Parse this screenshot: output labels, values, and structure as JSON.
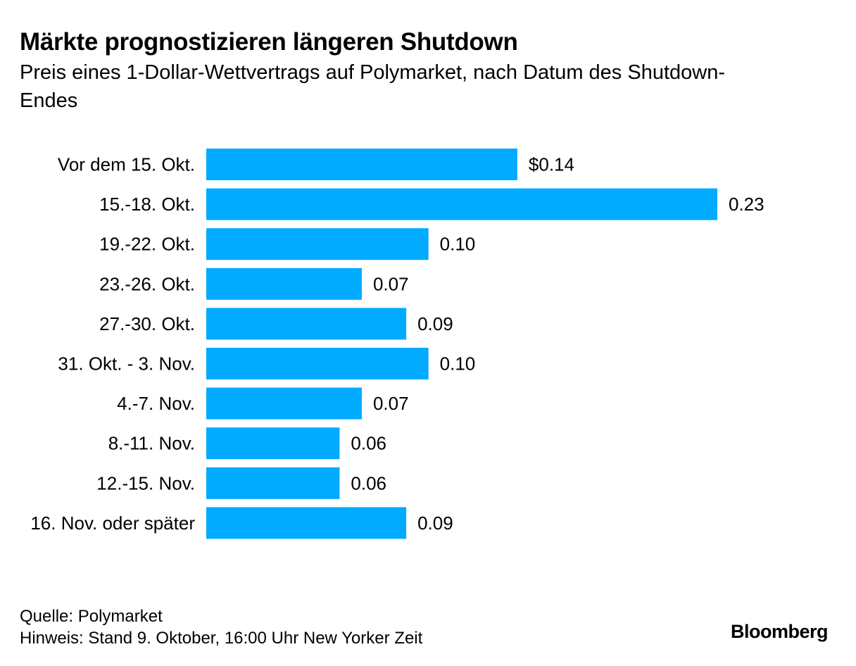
{
  "header": {
    "title": "Märkte prognostizieren längeren Shutdown",
    "subtitle": "Preis eines 1-Dollar-Wettvertrags auf Polymarket, nach Datum des Shutdown-Endes"
  },
  "chart_data": {
    "type": "bar",
    "orientation": "horizontal",
    "title": "Märkte prognostizieren längeren Shutdown",
    "subtitle": "Preis eines 1-Dollar-Wettvertrags auf Polymarket, nach Datum des Shutdown-Endes",
    "xlabel": "",
    "ylabel": "",
    "categories": [
      "Vor dem 15. Okt.",
      "15.-18. Okt.",
      "19.-22. Okt.",
      "23.-26. Okt.",
      "27.-30. Okt.",
      "31. Okt. - 3. Nov.",
      "4.-7. Nov.",
      "8.-11. Nov.",
      "12.-15. Nov.",
      "16. Nov. oder später"
    ],
    "values": [
      0.14,
      0.23,
      0.1,
      0.07,
      0.09,
      0.1,
      0.07,
      0.06,
      0.06,
      0.09
    ],
    "value_labels": [
      "$0.14",
      "0.23",
      "0.10",
      "0.07",
      "0.09",
      "0.10",
      "0.07",
      "0.06",
      "0.06",
      "0.09"
    ],
    "xlim": [
      0,
      0.23
    ],
    "grid": false,
    "bar_color": "#00aaff"
  },
  "footer": {
    "source": "Quelle: Polymarket",
    "note": "Hinweis: Stand 9. Oktober, 16:00 Uhr New Yorker Zeit",
    "brand": "Bloomberg"
  },
  "colors": {
    "bar": "#00aaff",
    "text": "#000000",
    "background": "#ffffff"
  }
}
